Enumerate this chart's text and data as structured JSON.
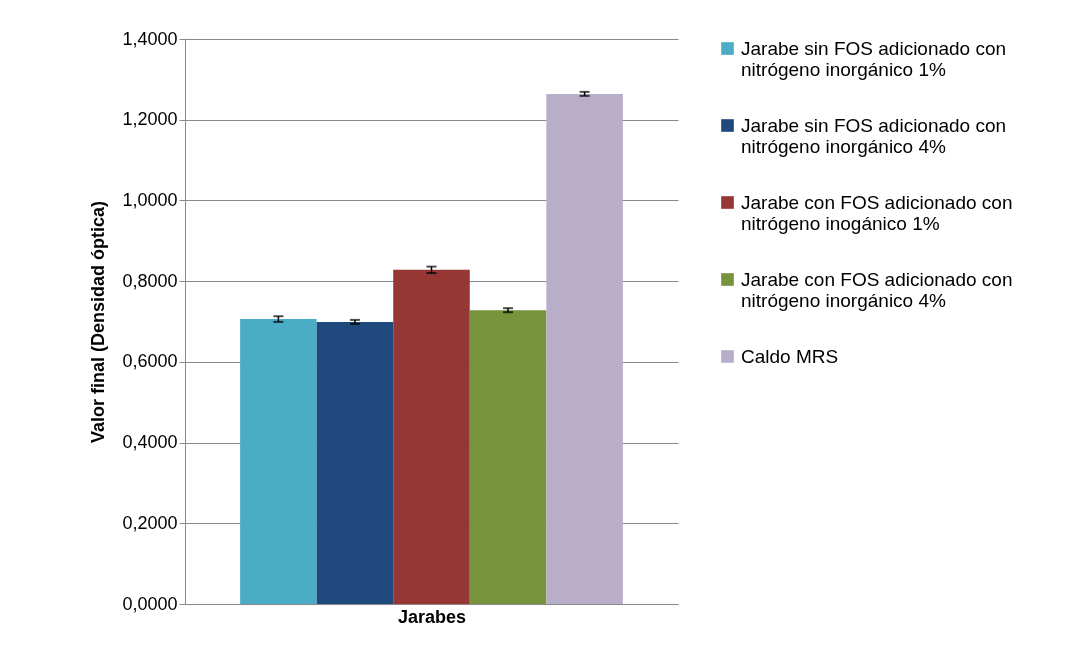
{
  "chart_data": {
    "type": "bar",
    "xlabel": "Jarabes",
    "ylabel": "Valor final (Densidad óptica)",
    "categories": [
      null
    ],
    "series": [
      {
        "name": "Jarabe sin FOS adicionado con nitrógeno inorgánico 1%",
        "color": "#4bacc6",
        "values": [
          0.706
        ],
        "errors": [
          0.007
        ]
      },
      {
        "name": "Jarabe sin FOS adicionado con nitrógeno inorgánico 4%",
        "color": "#1f497d",
        "values": [
          0.699
        ],
        "errors": [
          0.005
        ]
      },
      {
        "name": "Jarabe con FOS adicionado con nitrógeno inogánico 1%",
        "color": "#953735",
        "values": [
          0.828
        ],
        "errors": [
          0.008
        ]
      },
      {
        "name": "Jarabe con FOS adicionado con nitrógeno inorgánico 4%",
        "color": "#77933c",
        "values": [
          0.728
        ],
        "errors": [
          0.005
        ]
      },
      {
        "name": "Caldo MRS",
        "color": "#b9aeca",
        "values": [
          1.264
        ],
        "errors": [
          0.005
        ]
      }
    ],
    "ylim": [
      0,
      1.4
    ],
    "yticks": [
      {
        "value": 0,
        "label": "0,0000"
      },
      {
        "value": 0.2,
        "label": "0,2000"
      },
      {
        "value": 0.4,
        "label": "0,4000"
      },
      {
        "value": 0.6,
        "label": "0,6000"
      },
      {
        "value": 0.8,
        "label": "0,8000"
      },
      {
        "value": 1.0,
        "label": "1,0000"
      },
      {
        "value": 1.2,
        "label": "1,2000"
      },
      {
        "value": 1.4,
        "label": "1,4000"
      }
    ],
    "grid": "y",
    "legend": "right"
  }
}
